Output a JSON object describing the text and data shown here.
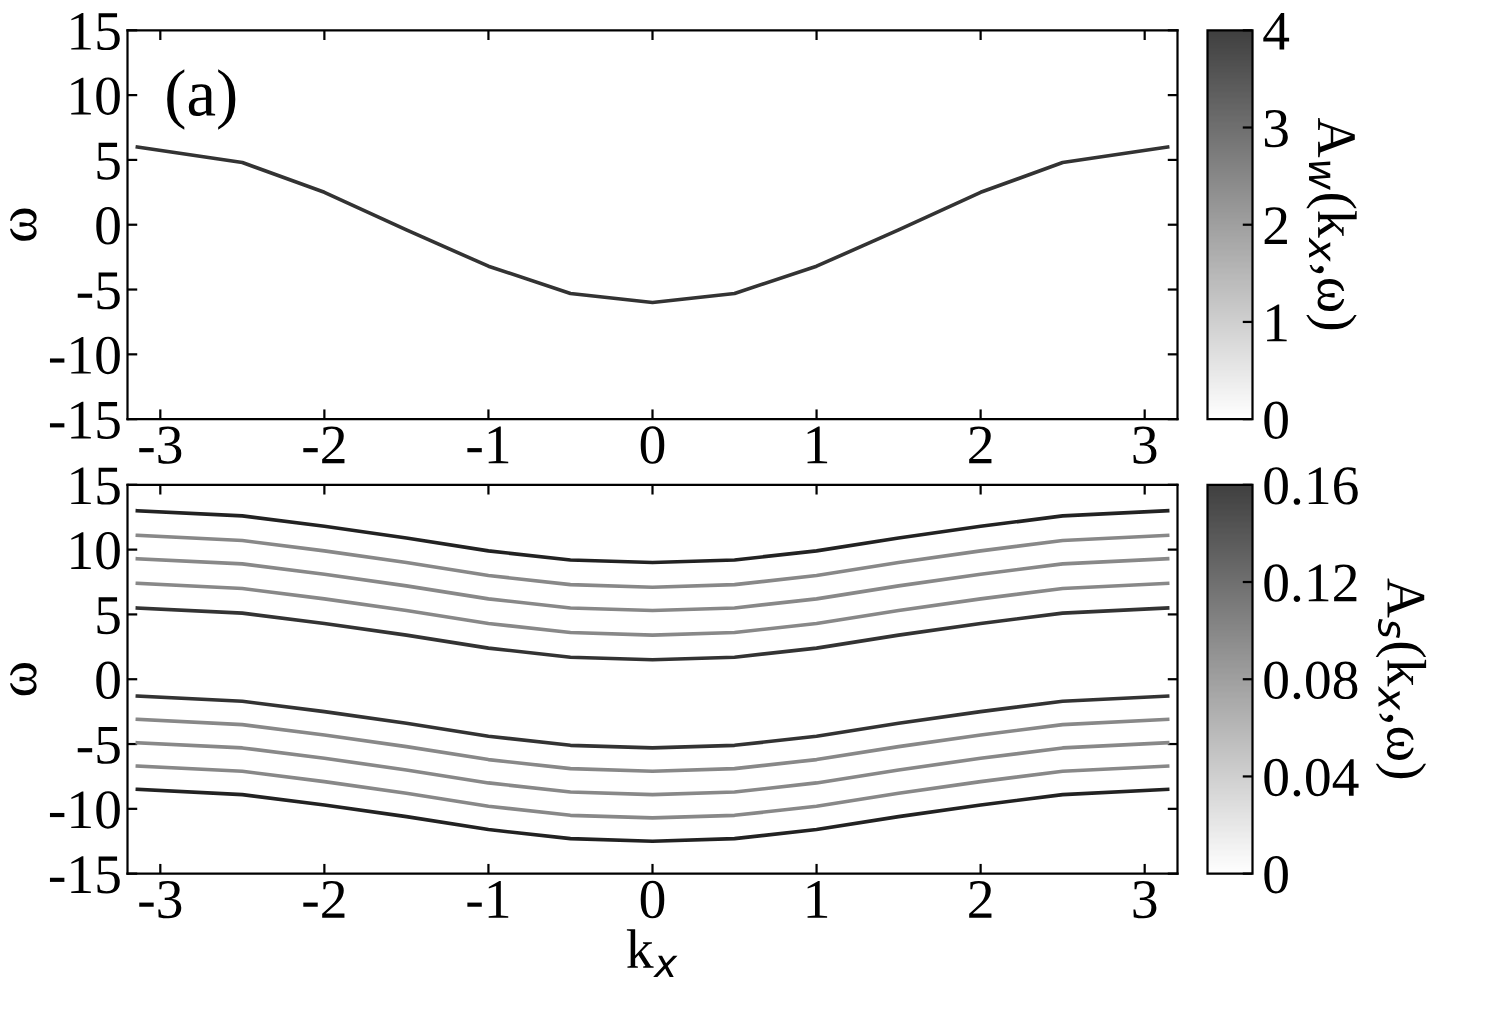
{
  "chart_data": [
    {
      "type": "line",
      "annotations": [
        "(a)"
      ],
      "ylabel": "ω",
      "clabel": "A$_{w}$(k$_{x}$,ω)",
      "clim": [
        0,
        4
      ],
      "cticks": [
        0,
        1,
        2,
        3,
        4
      ],
      "x": [
        -3.14,
        -2.5,
        -2,
        -1.5,
        -1,
        -0.5,
        0,
        0.5,
        1,
        1.5,
        2,
        2.5,
        3.14
      ],
      "xlim": [
        -3.2,
        3.2
      ],
      "xticks": [
        -3,
        -2,
        -1,
        0,
        1,
        2,
        3
      ],
      "ylim": [
        -15,
        15
      ],
      "yticks": [
        -15,
        -10,
        -5,
        0,
        5,
        10,
        15
      ],
      "series": [
        {
          "color": "#333333",
          "values": [
            6,
            4.8,
            2.5,
            -0.4,
            -3.2,
            -5.3,
            -6,
            -5.3,
            -3.2,
            -0.4,
            2.5,
            4.8,
            6
          ]
        }
      ]
    },
    {
      "type": "line",
      "xlabel": "k$_{x}$",
      "ylabel": "ω",
      "clabel": "A$_{s}$(k$_{x}$,ω)",
      "clim": [
        0,
        0.16
      ],
      "cticks": [
        0,
        0.04,
        0.08,
        0.12,
        0.16
      ],
      "x": [
        -3.14,
        -2.5,
        -2,
        -1.5,
        -1,
        -0.5,
        0,
        0.5,
        1,
        1.5,
        2,
        2.5,
        3.14
      ],
      "xlim": [
        -3.2,
        3.2
      ],
      "xticks": [
        -3,
        -2,
        -1,
        0,
        1,
        2,
        3
      ],
      "ylim": [
        -15,
        15
      ],
      "yticks": [
        -15,
        -10,
        -5,
        0,
        5,
        10,
        15
      ],
      "series": [
        {
          "color": "#333333",
          "values": [
            5.5,
            5.1,
            4.3,
            3.4,
            2.4,
            1.7,
            1.5,
            1.7,
            2.4,
            3.4,
            4.3,
            5.1,
            5.5
          ]
        },
        {
          "color": "#888888",
          "values": [
            7.4,
            7,
            6.2,
            5.3,
            4.3,
            3.6,
            3.4,
            3.6,
            4.3,
            5.3,
            6.2,
            7,
            7.4
          ]
        },
        {
          "color": "#888888",
          "values": [
            9.3,
            8.9,
            8.1,
            7.2,
            6.2,
            5.5,
            5.3,
            5.5,
            6.2,
            7.2,
            8.1,
            8.9,
            9.3
          ]
        },
        {
          "color": "#888888",
          "values": [
            11.1,
            10.7,
            9.9,
            9,
            8,
            7.3,
            7.1,
            7.3,
            8,
            9,
            9.9,
            10.7,
            11.1
          ]
        },
        {
          "color": "#222222",
          "values": [
            13,
            12.6,
            11.8,
            10.9,
            9.9,
            9.2,
            9,
            9.2,
            9.9,
            10.9,
            11.8,
            12.6,
            13
          ]
        },
        {
          "color": "#222222",
          "values": [
            -8.5,
            -8.9,
            -9.7,
            -10.6,
            -11.6,
            -12.3,
            -12.5,
            -12.3,
            -11.6,
            -10.6,
            -9.7,
            -8.9,
            -8.5
          ]
        },
        {
          "color": "#888888",
          "values": [
            -6.7,
            -7.1,
            -7.9,
            -8.8,
            -9.8,
            -10.5,
            -10.7,
            -10.5,
            -9.8,
            -8.8,
            -7.9,
            -7.1,
            -6.7
          ]
        },
        {
          "color": "#888888",
          "values": [
            -4.9,
            -5.3,
            -6.1,
            -7,
            -8,
            -8.7,
            -8.9,
            -8.7,
            -8,
            -7,
            -6.1,
            -5.3,
            -4.9
          ]
        },
        {
          "color": "#888888",
          "values": [
            -3.1,
            -3.5,
            -4.3,
            -5.2,
            -6.2,
            -6.9,
            -7.1,
            -6.9,
            -6.2,
            -5.2,
            -4.3,
            -3.5,
            -3.1
          ]
        },
        {
          "color": "#333333",
          "values": [
            -1.3,
            -1.7,
            -2.5,
            -3.4,
            -4.4,
            -5.1,
            -5.3,
            -5.1,
            -4.4,
            -3.4,
            -2.5,
            -1.7,
            -1.3
          ]
        }
      ]
    }
  ]
}
